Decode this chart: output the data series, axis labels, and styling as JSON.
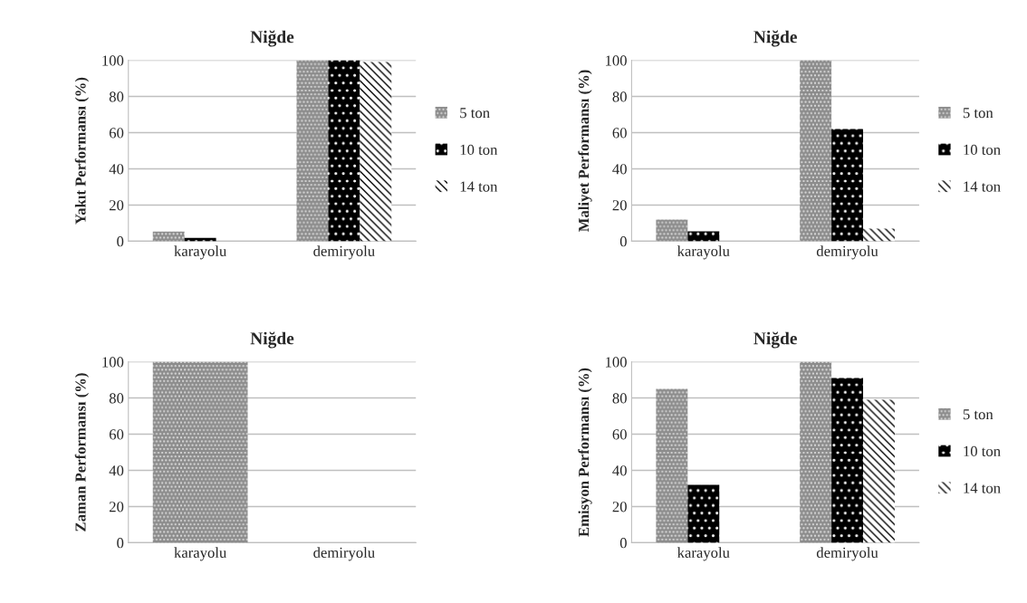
{
  "chart_data": [
    {
      "type": "bar",
      "title": "Niğde",
      "ylabel": "Yakıt Performansı (%)",
      "categories": [
        "karayolu",
        "demiryolu"
      ],
      "ylim": [
        0,
        100
      ],
      "yticks": [
        0,
        20,
        40,
        60,
        80,
        100
      ],
      "grid": "y",
      "legend": "right",
      "series": [
        {
          "name": "5 ton",
          "color": "#8c8c8c",
          "values": [
            5.3,
            100
          ]
        },
        {
          "name": "10 ton",
          "color": "#000000",
          "values": [
            1.8,
            100
          ]
        },
        {
          "name": "14 ton",
          "color": "#ffffff",
          "values": [
            0,
            99
          ]
        }
      ]
    },
    {
      "type": "bar",
      "title": "Niğde",
      "ylabel": "Maliyet Performansı (%)",
      "categories": [
        "karayolu",
        "demiryolu"
      ],
      "ylim": [
        0,
        100
      ],
      "yticks": [
        0,
        20,
        40,
        60,
        80,
        100
      ],
      "grid": "y",
      "legend": "right",
      "series": [
        {
          "name": "5 ton",
          "color": "#8c8c8c",
          "values": [
            12,
            100
          ]
        },
        {
          "name": "10 ton",
          "color": "#000000",
          "values": [
            5.5,
            62
          ]
        },
        {
          "name": "14 ton",
          "color": "#ffffff",
          "values": [
            0,
            7
          ]
        }
      ]
    },
    {
      "type": "bar",
      "title": "Niğde",
      "ylabel": "Zaman Performansı (%)",
      "categories": [
        "karayolu",
        "demiryolu"
      ],
      "ylim": [
        0,
        100
      ],
      "yticks": [
        0,
        20,
        40,
        60,
        80,
        100
      ],
      "grid": "y",
      "series": [
        {
          "color": "#8c8c8c",
          "values": [
            100,
            0
          ]
        }
      ]
    },
    {
      "type": "bar",
      "title": "Niğde",
      "ylabel": "Emisyon Performansı (%)",
      "categories": [
        "karayolu",
        "demiryolu"
      ],
      "ylim": [
        0,
        100
      ],
      "yticks": [
        0,
        20,
        40,
        60,
        80,
        100
      ],
      "grid": "y",
      "legend": "right",
      "series": [
        {
          "name": "5 ton",
          "color": "#8c8c8c",
          "values": [
            85,
            100
          ]
        },
        {
          "name": "10 ton",
          "color": "#000000",
          "values": [
            32,
            91
          ]
        },
        {
          "name": "14 ton",
          "color": "#ffffff",
          "values": [
            0,
            79
          ]
        }
      ]
    }
  ]
}
